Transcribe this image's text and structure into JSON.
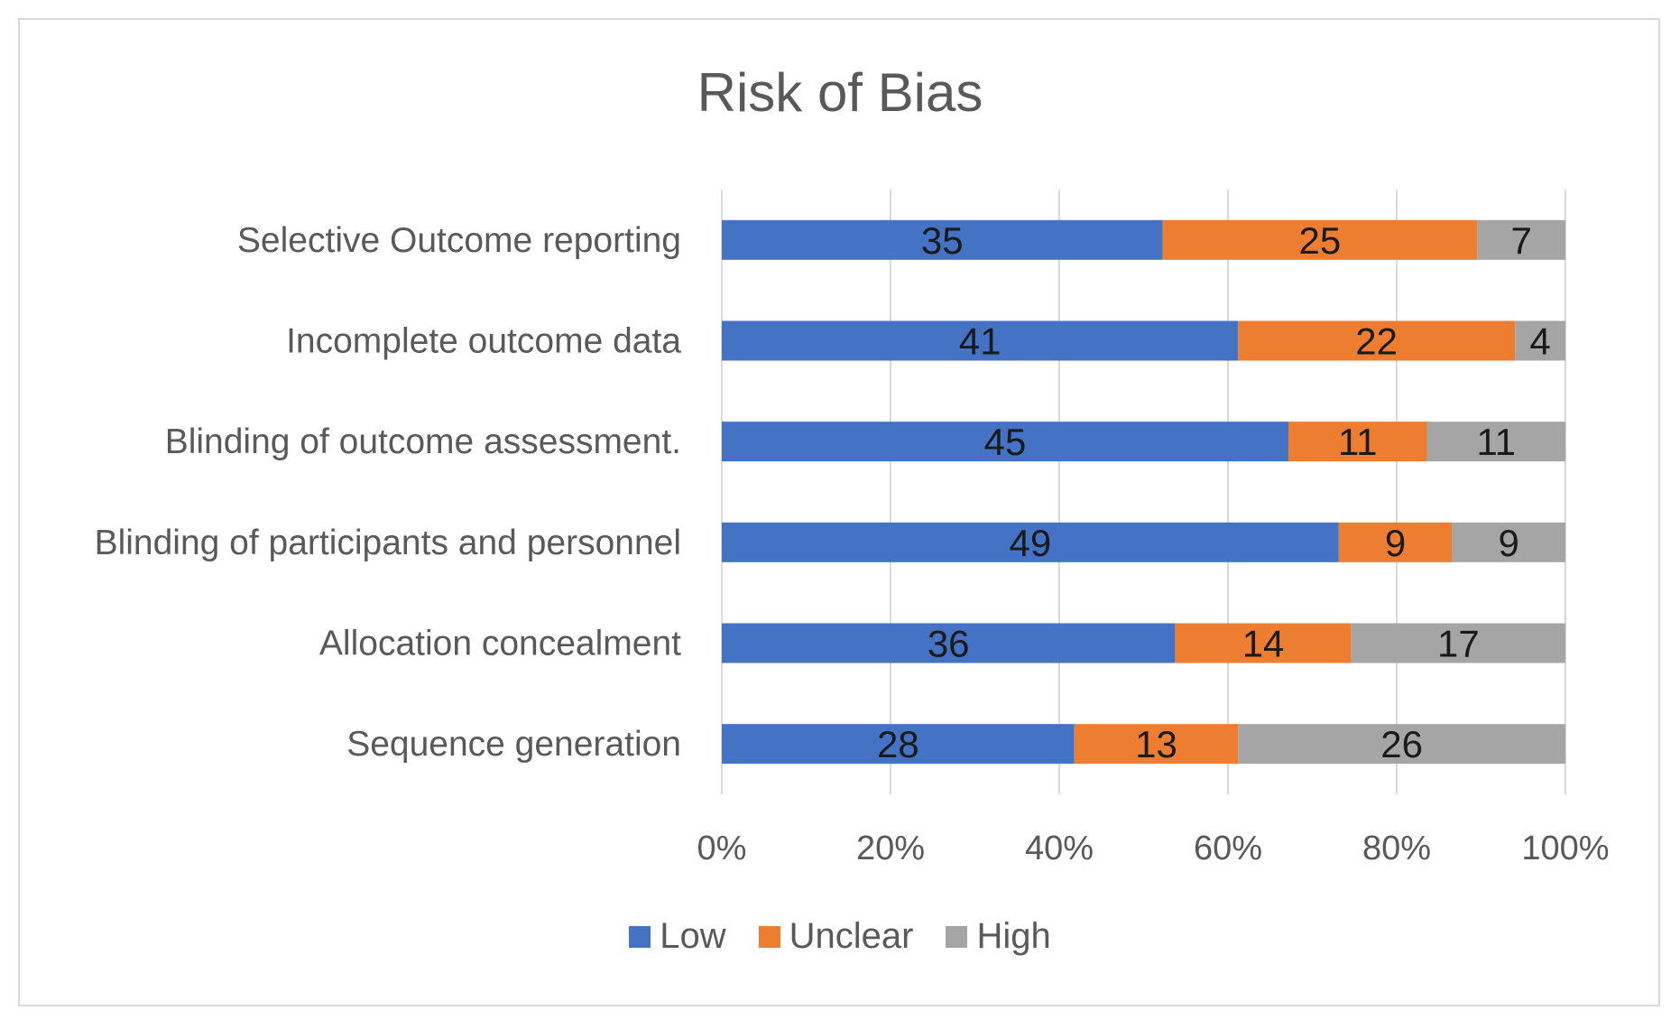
{
  "chart_data": {
    "type": "bar",
    "orientation": "horizontal",
    "stacked": "percent",
    "title": "Risk of Bias",
    "categories": [
      "Selective Outcome reporting",
      "Incomplete outcome data",
      "Blinding of outcome assessment.",
      "Blinding of participants and personnel",
      "Allocation concealment",
      "Sequence generation"
    ],
    "series": [
      {
        "name": "Low",
        "color": "#4472c4",
        "values": [
          35,
          41,
          45,
          49,
          36,
          28
        ]
      },
      {
        "name": "Unclear",
        "color": "#ed7d31",
        "values": [
          25,
          22,
          11,
          9,
          14,
          13
        ]
      },
      {
        "name": "High",
        "color": "#a5a5a5",
        "values": [
          7,
          4,
          11,
          9,
          17,
          26
        ]
      }
    ],
    "x_ticks": [
      "0%",
      "20%",
      "40%",
      "60%",
      "80%",
      "100%"
    ],
    "xlim": [
      0,
      100
    ],
    "grid": true,
    "legend_position": "bottom"
  }
}
